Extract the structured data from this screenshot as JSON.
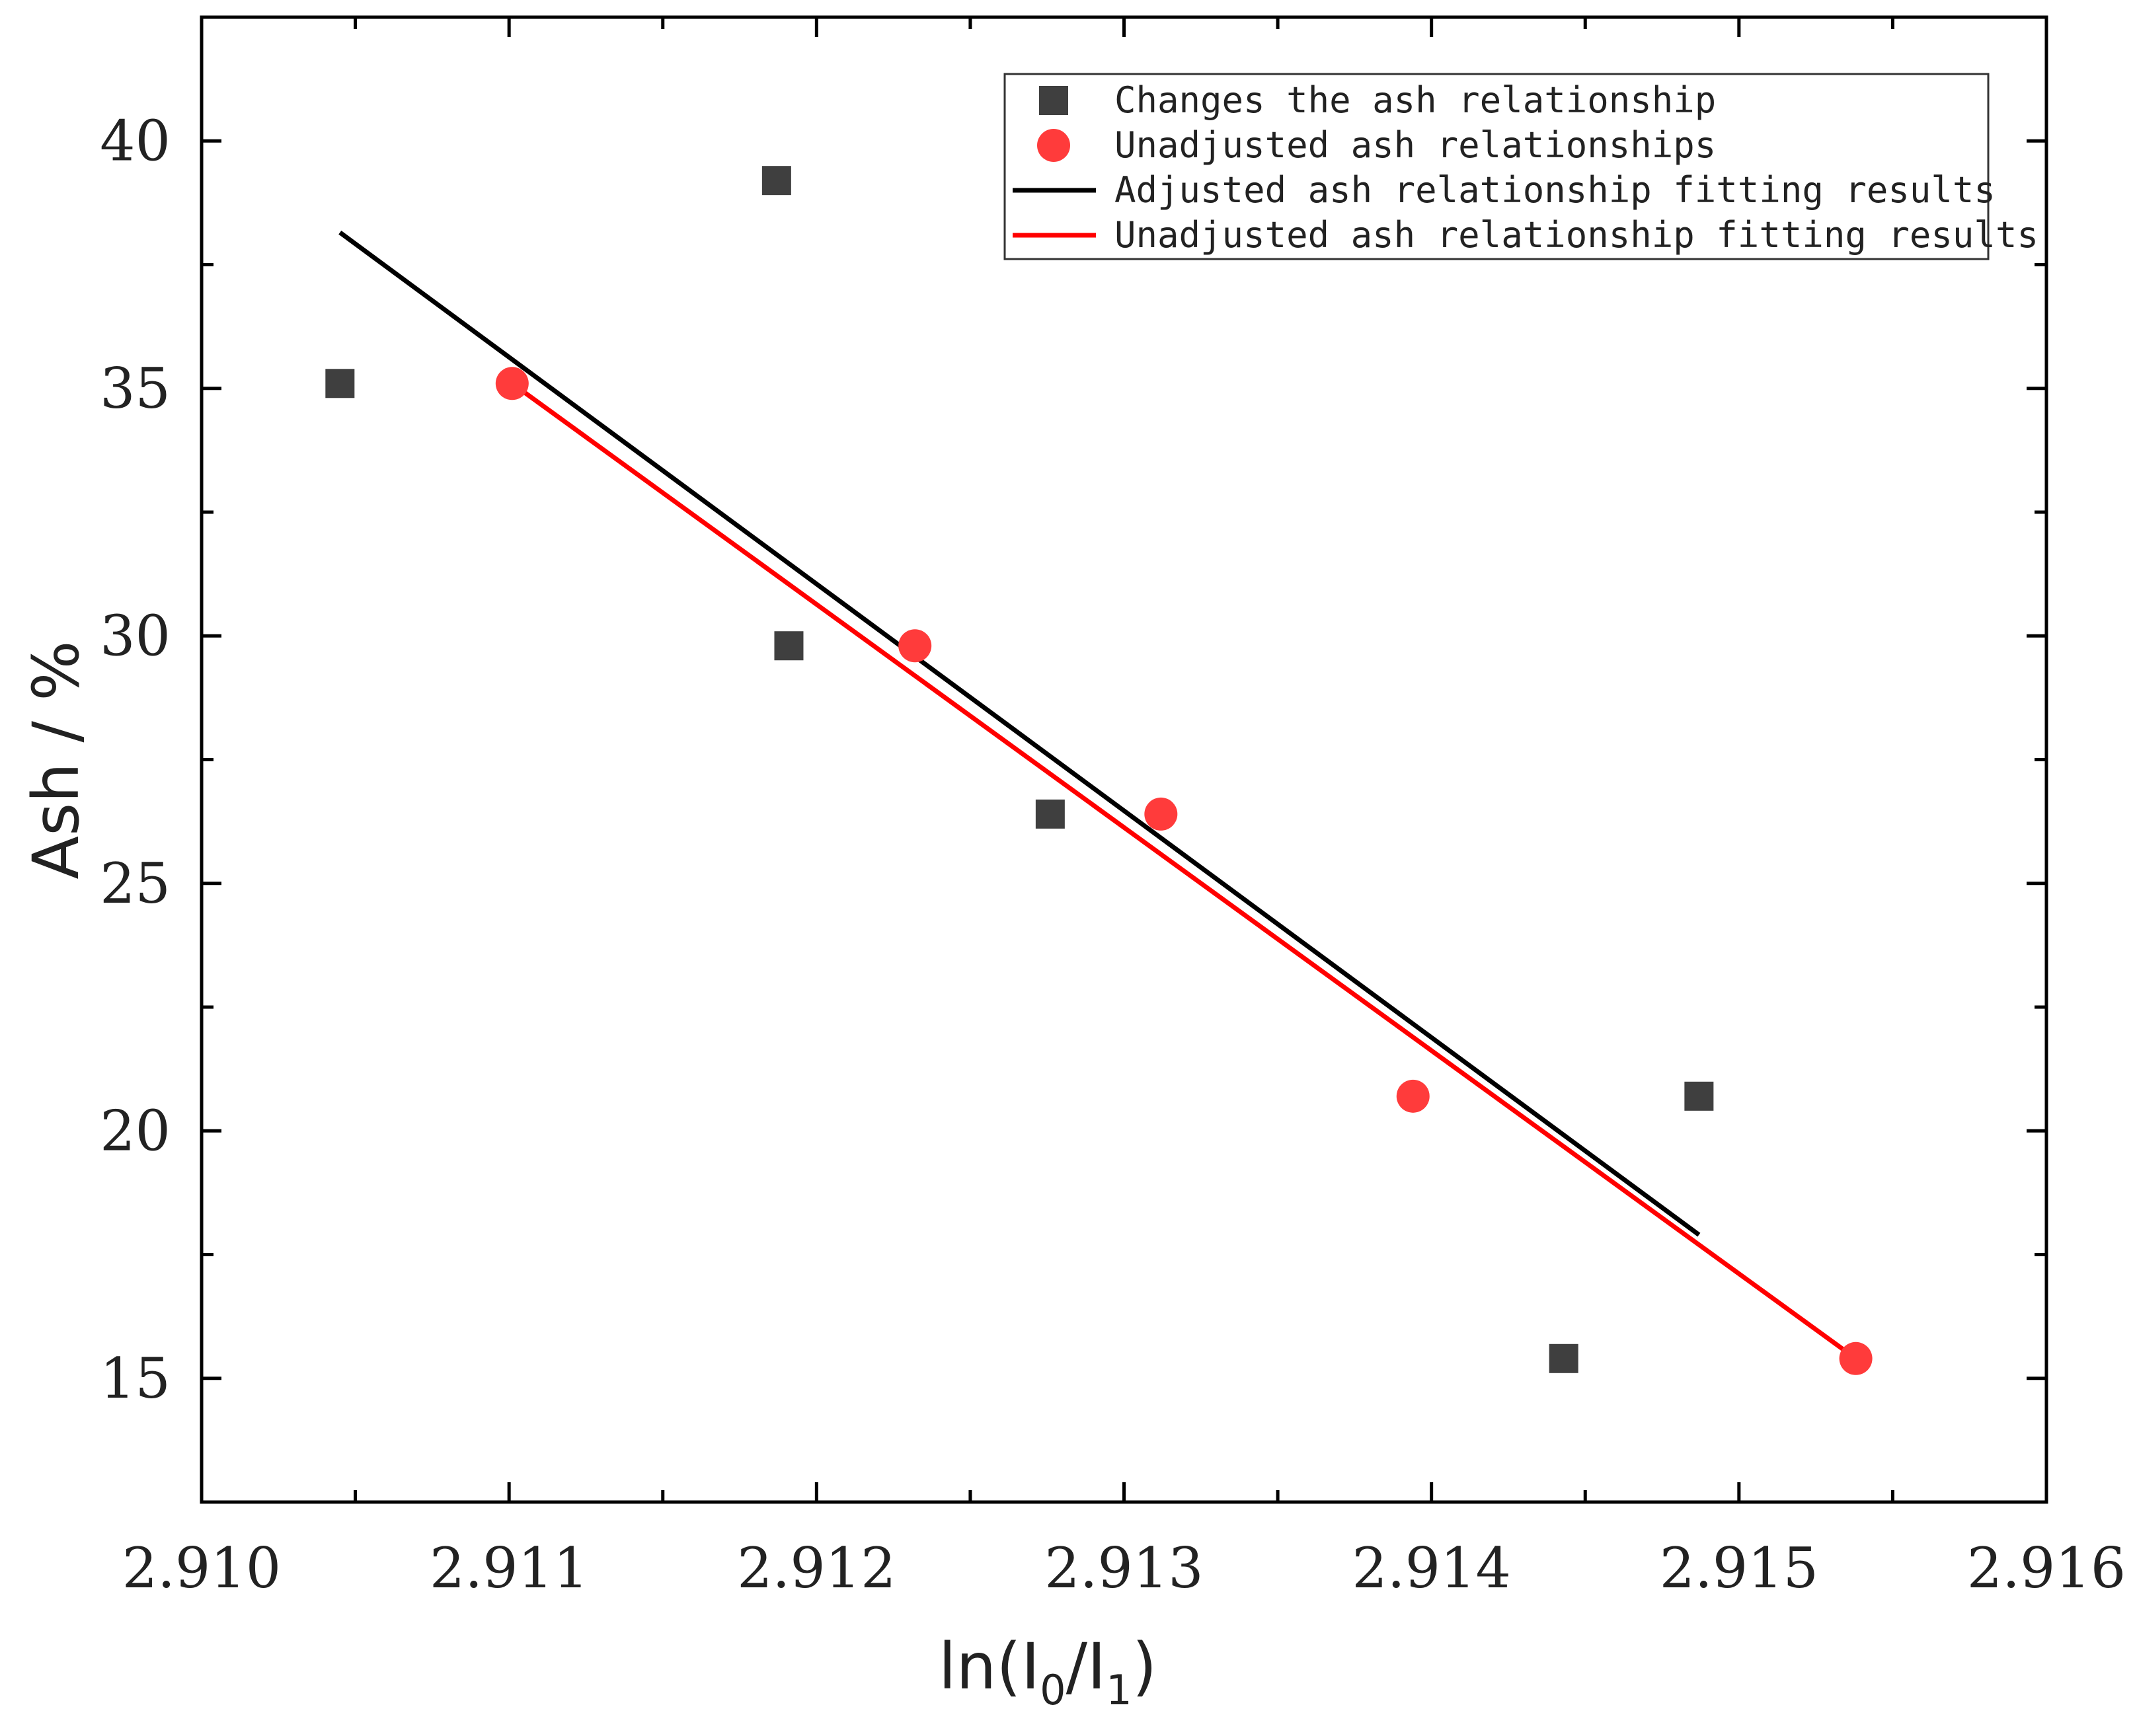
{
  "chart_data": {
    "type": "scatter",
    "title": "",
    "xlabel": "ln(I0/I1)",
    "xlabel_parts": {
      "prefix": "ln(I",
      "sub0": "0",
      "mid": "/I",
      "sub1": "1",
      "suffix": ")"
    },
    "ylabel": "Ash  / %",
    "xlim": [
      2.91,
      2.916
    ],
    "ylim": [
      12.5,
      42.5
    ],
    "x_ticks": [
      2.91,
      2.911,
      2.912,
      2.913,
      2.914,
      2.915,
      2.916
    ],
    "x_tick_labels": [
      "2.910",
      "2.911",
      "2.912",
      "2.913",
      "2.914",
      "2.915",
      "2.916"
    ],
    "y_ticks": [
      15,
      20,
      25,
      30,
      35,
      40
    ],
    "y_tick_labels": [
      "15",
      "20",
      "25",
      "30",
      "35",
      "40"
    ],
    "x_minor_step": 0.0005,
    "y_minor_step": 2.5,
    "grid": false,
    "legend_position": "top-right",
    "series": [
      {
        "name": "Changes the ash relationship",
        "kind": "points",
        "marker": "square",
        "color": "#3f3f3f",
        "x": [
          2.91045,
          2.91187,
          2.91191,
          2.91276,
          2.91443,
          2.91487
        ],
        "y": [
          35.1,
          39.2,
          29.8,
          26.4,
          15.4,
          20.7
        ]
      },
      {
        "name": "Unadjusted ash relationships",
        "kind": "points",
        "marker": "circle",
        "color": "#ff3b3b",
        "x": [
          2.91101,
          2.91232,
          2.91312,
          2.91394,
          2.91538
        ],
        "y": [
          35.1,
          29.8,
          26.4,
          20.7,
          15.4
        ]
      },
      {
        "name": "Adjusted ash relationship fitting results",
        "kind": "line",
        "color": "#000000",
        "x": [
          2.91045,
          2.91487
        ],
        "y": [
          38.15,
          17.9
        ]
      },
      {
        "name": "Unadjusted ash relationship fitting results",
        "kind": "line",
        "color": "#ff0000",
        "x": [
          2.91101,
          2.91538
        ],
        "y": [
          35.1,
          15.4
        ]
      }
    ]
  }
}
